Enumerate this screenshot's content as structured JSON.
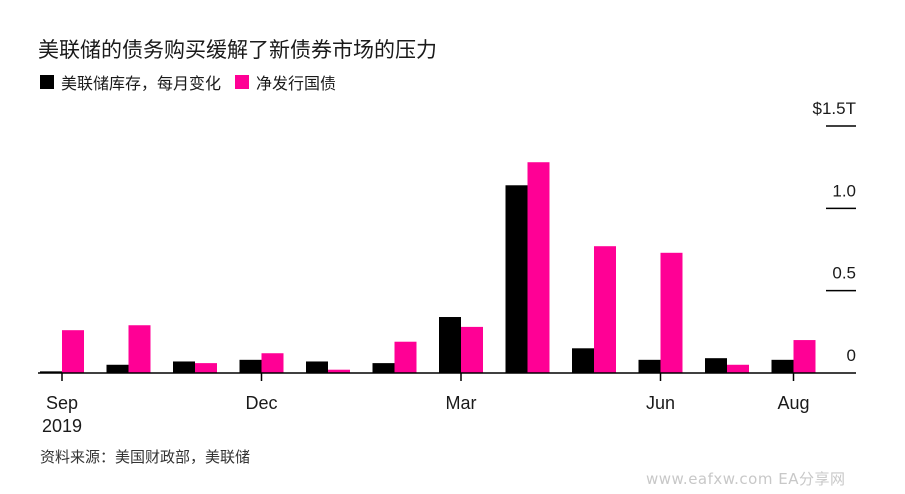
{
  "title": "美联储的债务购买缓解了新债券市场的压力",
  "legend": [
    {
      "label": "美联储库存，每月变化",
      "color": "#000000"
    },
    {
      "label": "净发行国债",
      "color": "#ff0095"
    }
  ],
  "source": "资料来源：美国财政部，美联储",
  "watermark": "www.eafxw.com  EA分享网",
  "chart_data": {
    "type": "bar",
    "categories": [
      "Sep 2019",
      "Oct 2019",
      "Nov 2019",
      "Dec 2019",
      "Jan 2020",
      "Feb 2020",
      "Mar 2020",
      "Apr 2020",
      "May 2020",
      "Jun 2020",
      "Jul 2020",
      "Aug 2020"
    ],
    "x_tick_labels": [
      {
        "index": 0,
        "label": "Sep",
        "sublabel": "2019"
      },
      {
        "index": 3,
        "label": "Dec",
        "sublabel": ""
      },
      {
        "index": 6,
        "label": "Mar",
        "sublabel": ""
      },
      {
        "index": 9,
        "label": "Jun",
        "sublabel": ""
      },
      {
        "index": 11,
        "label": "Aug",
        "sublabel": ""
      }
    ],
    "series": [
      {
        "name": "美联储库存，每月变化",
        "color": "#000000",
        "values": [
          0.01,
          0.05,
          0.07,
          0.08,
          0.07,
          0.06,
          0.34,
          1.14,
          0.15,
          0.08,
          0.09,
          0.08
        ]
      },
      {
        "name": "净发行国债",
        "color": "#ff0095",
        "values": [
          0.26,
          0.29,
          0.06,
          0.12,
          0.02,
          0.19,
          0.28,
          1.28,
          0.77,
          0.73,
          0.05,
          0.2
        ]
      }
    ],
    "y_ticks": [
      "$1.5T",
      "1.0",
      "0.5",
      "0"
    ],
    "y_tick_values": [
      1.5,
      1.0,
      0.5,
      0
    ],
    "ylim": [
      0,
      1.5
    ]
  }
}
